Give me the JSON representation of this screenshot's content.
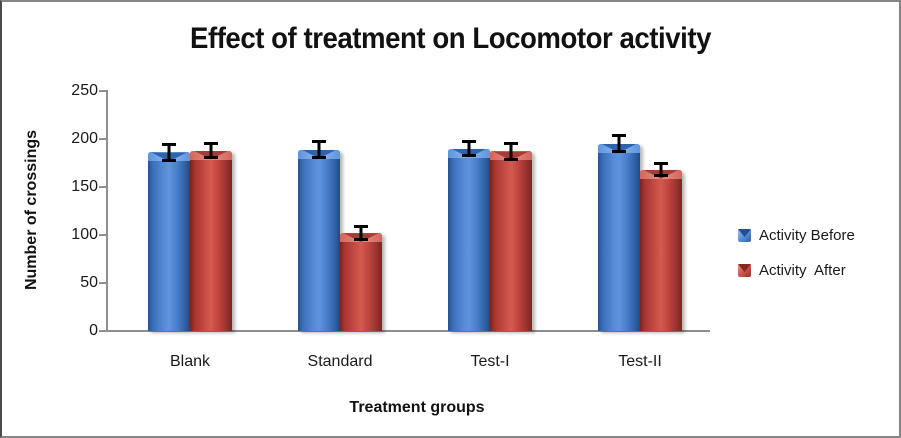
{
  "title": "Effect of treatment on Locomotor activity",
  "chart_data": {
    "type": "bar",
    "title": "Effect of treatment on Locomotor activity",
    "categories": [
      "Blank",
      "Standard",
      "Test-I",
      "Test-II"
    ],
    "series": [
      {
        "name": "Activity Before",
        "color": "#3e74c2",
        "values": [
          186,
          189,
          190,
          195
        ],
        "errors": [
          10,
          10,
          9,
          10
        ]
      },
      {
        "name": "Activity  After",
        "color": "#c13b38",
        "values": [
          188,
          102,
          187,
          168
        ],
        "errors": [
          9,
          8,
          10,
          8
        ]
      }
    ],
    "xlabel": "Treatment groups",
    "ylabel": "Number of crossings",
    "ylim": [
      0,
      250
    ],
    "ytick_step": 50,
    "ytick_labels": [
      "0",
      "50",
      "100",
      "150",
      "200",
      "250"
    ],
    "grid": false,
    "legend_position": "right",
    "error_bar_color": "#000000",
    "axis_color": "#8f8f8f"
  }
}
